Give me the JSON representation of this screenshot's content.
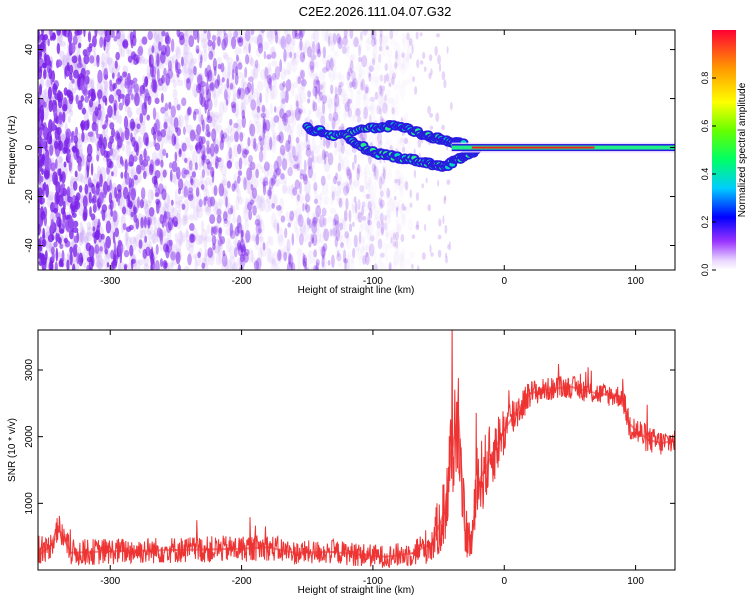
{
  "title": "C2E2.2026.111.04.07.G32",
  "colors": {
    "signal": "#ee3333",
    "frame": "#000000"
  },
  "chart_data": [
    {
      "type": "heatmap",
      "xlabel": "Height of straight line (km)",
      "ylabel": "Frequency (Hz)",
      "xlim": [
        -355,
        130
      ],
      "ylim": [
        -50,
        48
      ],
      "xticks": [
        -300,
        -200,
        -100,
        0,
        100
      ],
      "xtick_labels": [
        "-300",
        "-200",
        "-100",
        "0",
        "100"
      ],
      "yticks": [
        -40,
        -20,
        0,
        20,
        40
      ],
      "ytick_labels": [
        "-40",
        "-20",
        "0",
        "20",
        "40"
      ],
      "colorbar": {
        "label": "Normalized spectral amplitude",
        "range": [
          0,
          1
        ],
        "ticks": [
          0.0,
          0.2,
          0.4,
          0.6,
          0.8
        ],
        "tick_labels": [
          "0.0",
          "0.2",
          "0.4",
          "0.6",
          "0.8"
        ],
        "colormap": "rainbow"
      },
      "features": {
        "noise_region_km": [
          -355,
          -90
        ],
        "carrier_start_km": -40,
        "carrier_frequency_hz": 0,
        "upper_branch": [
          [
            -150,
            8
          ],
          [
            -130,
            5
          ],
          [
            -100,
            8
          ],
          [
            -80,
            9
          ],
          [
            -60,
            5
          ],
          [
            -45,
            3
          ],
          [
            -30,
            1
          ]
        ],
        "lower_branch": [
          [
            -120,
            4
          ],
          [
            -100,
            -2
          ],
          [
            -80,
            -4
          ],
          [
            -60,
            -6
          ],
          [
            -45,
            -8
          ],
          [
            -30,
            -3
          ],
          [
            -20,
            -1
          ]
        ]
      }
    },
    {
      "type": "line",
      "xlabel": "Height of straight line (km)",
      "ylabel": "SNR (10 * v/v)",
      "xlim": [
        -355,
        130
      ],
      "ylim": [
        0,
        3600
      ],
      "xticks": [
        -300,
        -200,
        -100,
        0,
        100
      ],
      "xtick_labels": [
        "-300",
        "-200",
        "-100",
        "0",
        "100"
      ],
      "yticks": [
        1000,
        2000,
        3000
      ],
      "ytick_labels": [
        "1000",
        "2000",
        "3000"
      ],
      "series": [
        {
          "x": [
            -355,
            -345,
            -340,
            -330,
            -300,
            -250,
            -200,
            -180,
            -160,
            -130,
            -110,
            -90,
            -70,
            -55,
            -45,
            -40,
            -35,
            -30,
            -25,
            -20,
            -10,
            0,
            10,
            20,
            30,
            50,
            70,
            90,
            95,
            100,
            110,
            120,
            130
          ],
          "y": [
            200,
            380,
            650,
            260,
            280,
            300,
            320,
            340,
            260,
            270,
            230,
            200,
            250,
            400,
            900,
            1800,
            2300,
            600,
            400,
            1300,
            1700,
            2100,
            2400,
            2650,
            2700,
            2750,
            2650,
            2600,
            2200,
            2100,
            1950,
            1900,
            1950
          ],
          "spread": [
            180,
            200,
            250,
            200,
            200,
            200,
            200,
            200,
            180,
            180,
            180,
            170,
            200,
            300,
            600,
            900,
            800,
            400,
            300,
            600,
            500,
            400,
            300,
            200,
            180,
            170,
            170,
            170,
            250,
            250,
            200,
            200,
            200
          ]
        }
      ]
    }
  ]
}
